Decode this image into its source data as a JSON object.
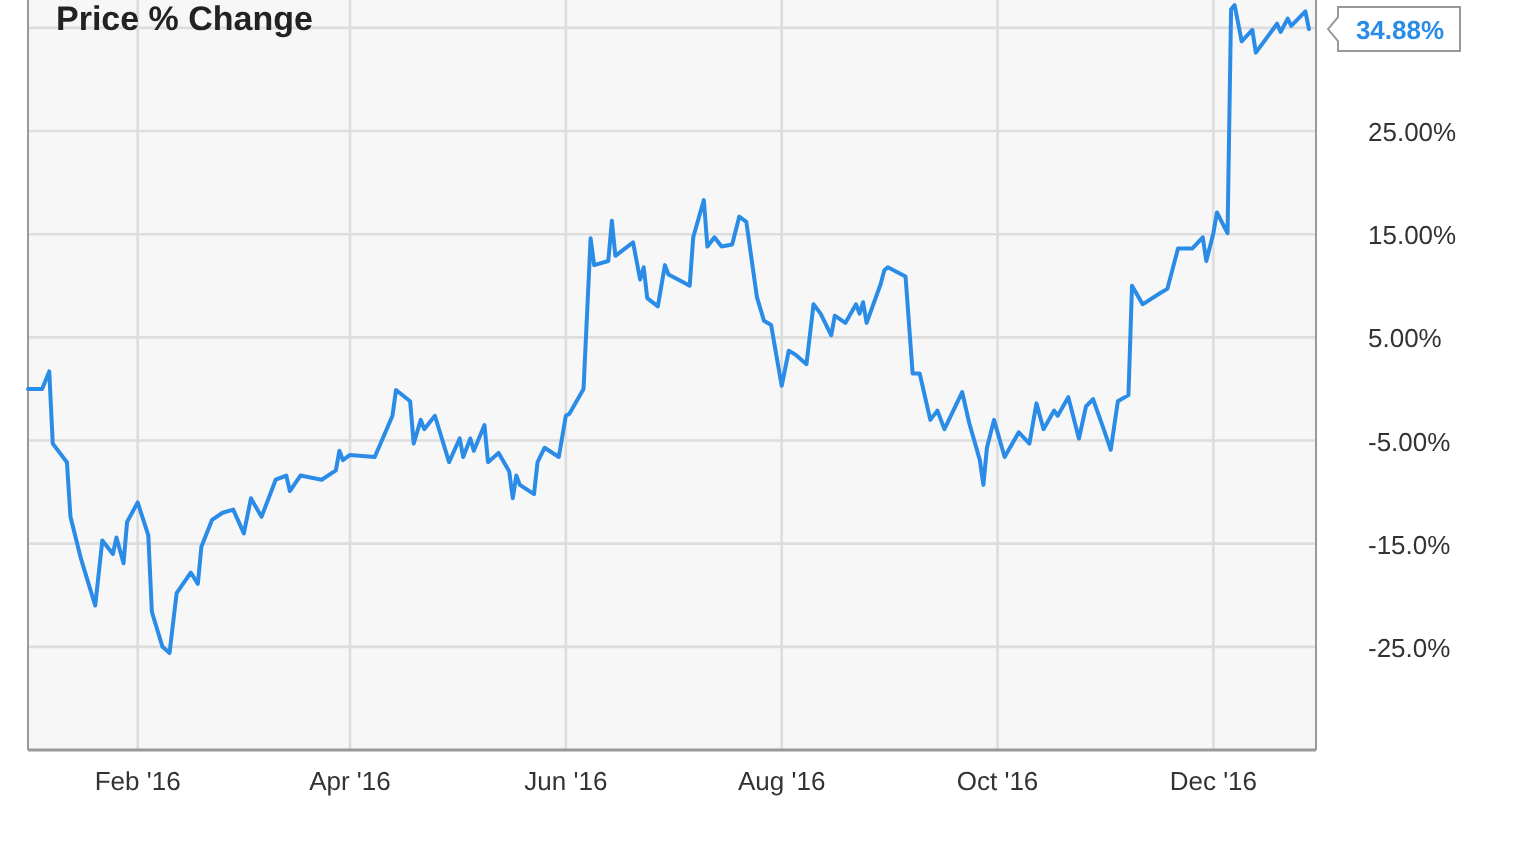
{
  "chart_data": {
    "type": "line",
    "title": "Price % Change",
    "x": [
      "2016-01-01",
      "2016-01-05",
      "2016-01-07",
      "2016-01-08",
      "2016-01-12",
      "2016-01-13",
      "2016-01-16",
      "2016-01-20",
      "2016-01-22",
      "2016-01-25",
      "2016-01-26",
      "2016-01-28",
      "2016-01-29",
      "2016-02-01",
      "2016-02-04",
      "2016-02-05",
      "2016-02-08",
      "2016-02-10",
      "2016-02-12",
      "2016-02-16",
      "2016-02-18",
      "2016-02-19",
      "2016-02-22",
      "2016-02-25",
      "2016-02-28",
      "2016-03-02",
      "2016-03-04",
      "2016-03-07",
      "2016-03-11",
      "2016-03-14",
      "2016-03-15",
      "2016-03-18",
      "2016-03-24",
      "2016-03-28",
      "2016-03-29",
      "2016-03-30",
      "2016-04-01",
      "2016-04-08",
      "2016-04-13",
      "2016-04-14",
      "2016-04-18",
      "2016-04-19",
      "2016-04-21",
      "2016-04-22",
      "2016-04-25",
      "2016-04-29",
      "2016-05-02",
      "2016-05-03",
      "2016-05-05",
      "2016-05-06",
      "2016-05-09",
      "2016-05-10",
      "2016-05-13",
      "2016-05-16",
      "2016-05-17",
      "2016-05-18",
      "2016-05-19",
      "2016-05-23",
      "2016-05-24",
      "2016-05-26",
      "2016-05-30",
      "2016-06-01",
      "2016-06-02",
      "2016-06-06",
      "2016-06-08",
      "2016-06-09",
      "2016-06-13",
      "2016-06-14",
      "2016-06-15",
      "2016-06-20",
      "2016-06-22",
      "2016-06-23",
      "2016-06-24",
      "2016-06-27",
      "2016-06-29",
      "2016-06-30",
      "2016-07-05",
      "2016-07-06",
      "2016-07-07",
      "2016-07-10",
      "2016-07-11",
      "2016-07-13",
      "2016-07-15",
      "2016-07-18",
      "2016-07-20",
      "2016-07-22",
      "2016-07-25",
      "2016-07-27",
      "2016-07-29",
      "2016-08-01",
      "2016-08-03",
      "2016-08-05",
      "2016-08-08",
      "2016-08-10",
      "2016-08-12",
      "2016-08-15",
      "2016-08-16",
      "2016-08-19",
      "2016-08-22",
      "2016-08-23",
      "2016-08-24",
      "2016-08-25",
      "2016-08-29",
      "2016-08-30",
      "2016-08-31",
      "2016-09-05",
      "2016-09-07",
      "2016-09-09",
      "2016-09-12",
      "2016-09-14",
      "2016-09-16",
      "2016-09-21",
      "2016-09-23",
      "2016-09-26",
      "2016-09-27",
      "2016-09-28",
      "2016-09-30",
      "2016-10-03",
      "2016-10-07",
      "2016-10-10",
      "2016-10-12",
      "2016-10-14",
      "2016-10-17",
      "2016-10-18",
      "2016-10-21",
      "2016-10-24",
      "2016-10-26",
      "2016-10-28",
      "2016-10-31",
      "2016-11-02",
      "2016-11-04",
      "2016-11-07",
      "2016-11-08",
      "2016-11-11",
      "2016-11-16",
      "2016-11-18",
      "2016-11-21",
      "2016-11-25",
      "2016-11-28",
      "2016-11-29",
      "2016-12-01",
      "2016-12-02",
      "2016-12-05",
      "2016-12-06",
      "2016-12-07",
      "2016-12-09",
      "2016-12-12",
      "2016-12-13",
      "2016-12-19",
      "2016-12-20",
      "2016-12-22",
      "2016-12-23",
      "2016-12-27",
      "2016-12-28"
    ],
    "series": [
      {
        "color": "#2b8ce8",
        "values": [
          0,
          0,
          1.7,
          -5.3,
          -7.1,
          -12.4,
          -16.5,
          -21,
          -14.7,
          -16,
          -14.4,
          -16.9,
          -12.9,
          -11,
          -14.2,
          -21.6,
          -25,
          -25.6,
          -19.8,
          -17.8,
          -18.9,
          -15.3,
          -12.7,
          -12,
          -11.7,
          -14,
          -10.6,
          -12.4,
          -8.8,
          -8.4,
          -9.9,
          -8.4,
          -8.8,
          -7.9,
          -6,
          -6.9,
          -6.4,
          -6.6,
          -2.6,
          -0.1,
          -1.2,
          -5.3,
          -3,
          -3.9,
          -2.6,
          -7.1,
          -4.8,
          -6.6,
          -4.8,
          -6,
          -3.5,
          -7.1,
          -6.2,
          -8,
          -10.6,
          -8.4,
          -9.3,
          -10.2,
          -7.1,
          -5.7,
          -6.6,
          -2.6,
          -2.4,
          0,
          14.6,
          12,
          12.4,
          16.3,
          12.9,
          14.2,
          10.6,
          11.8,
          8.8,
          8,
          12,
          11.1,
          10.2,
          10,
          14.7,
          18.3,
          13.8,
          14.7,
          13.8,
          14,
          16.7,
          16.2,
          8.9,
          6.6,
          6.2,
          0.3,
          3.7,
          3.3,
          2.4,
          8.2,
          7.3,
          5.2,
          7.1,
          6.4,
          8.2,
          7.3,
          8.4,
          6.4,
          10.2,
          11.5,
          11.8,
          10.9,
          1.5,
          1.5,
          -3,
          -2.1,
          -3.9,
          -0.3,
          -3.3,
          -6.9,
          -9.3,
          -5.7,
          -3,
          -6.6,
          -4.2,
          -5.3,
          -1.4,
          -3.9,
          -2.1,
          -2.6,
          -0.8,
          -4.8,
          -1.7,
          -1,
          -3.9,
          -5.9,
          -1.2,
          -0.6,
          10,
          8.2,
          9.3,
          9.7,
          13.6,
          13.6,
          14.7,
          12.4,
          15.1,
          17.1,
          15.1,
          36.8,
          37.2,
          33.7,
          34.8,
          32.6,
          35.4,
          34.6,
          35.9,
          35.2,
          36.6,
          34.88
        ]
      }
    ],
    "xlim": [
      "2016-01-01",
      "2016-12-30"
    ],
    "xticks": [
      {
        "value": "2016-02-01",
        "label": "Feb '16"
      },
      {
        "value": "2016-04-01",
        "label": "Apr '16"
      },
      {
        "value": "2016-06-01",
        "label": "Jun '16"
      },
      {
        "value": "2016-08-01",
        "label": "Aug '16"
      },
      {
        "value": "2016-10-01",
        "label": "Oct '16"
      },
      {
        "value": "2016-12-01",
        "label": "Dec '16"
      }
    ],
    "ylim": [
      -35,
      37.7
    ],
    "yticks": [
      {
        "value": -25,
        "label": "-25.0%"
      },
      {
        "value": -15,
        "label": "-15.0%"
      },
      {
        "value": -5,
        "label": "-5.00%"
      },
      {
        "value": 5,
        "label": "5.00%"
      },
      {
        "value": 15,
        "label": "15.00%"
      },
      {
        "value": 25,
        "label": "25.00%"
      },
      {
        "value": 35,
        "label": null
      }
    ],
    "annotations": [
      {
        "text": "34.88%",
        "x": "2016-12-28",
        "y": 34.88
      }
    ],
    "grid": true,
    "marker": "none",
    "line_style": "solid"
  }
}
